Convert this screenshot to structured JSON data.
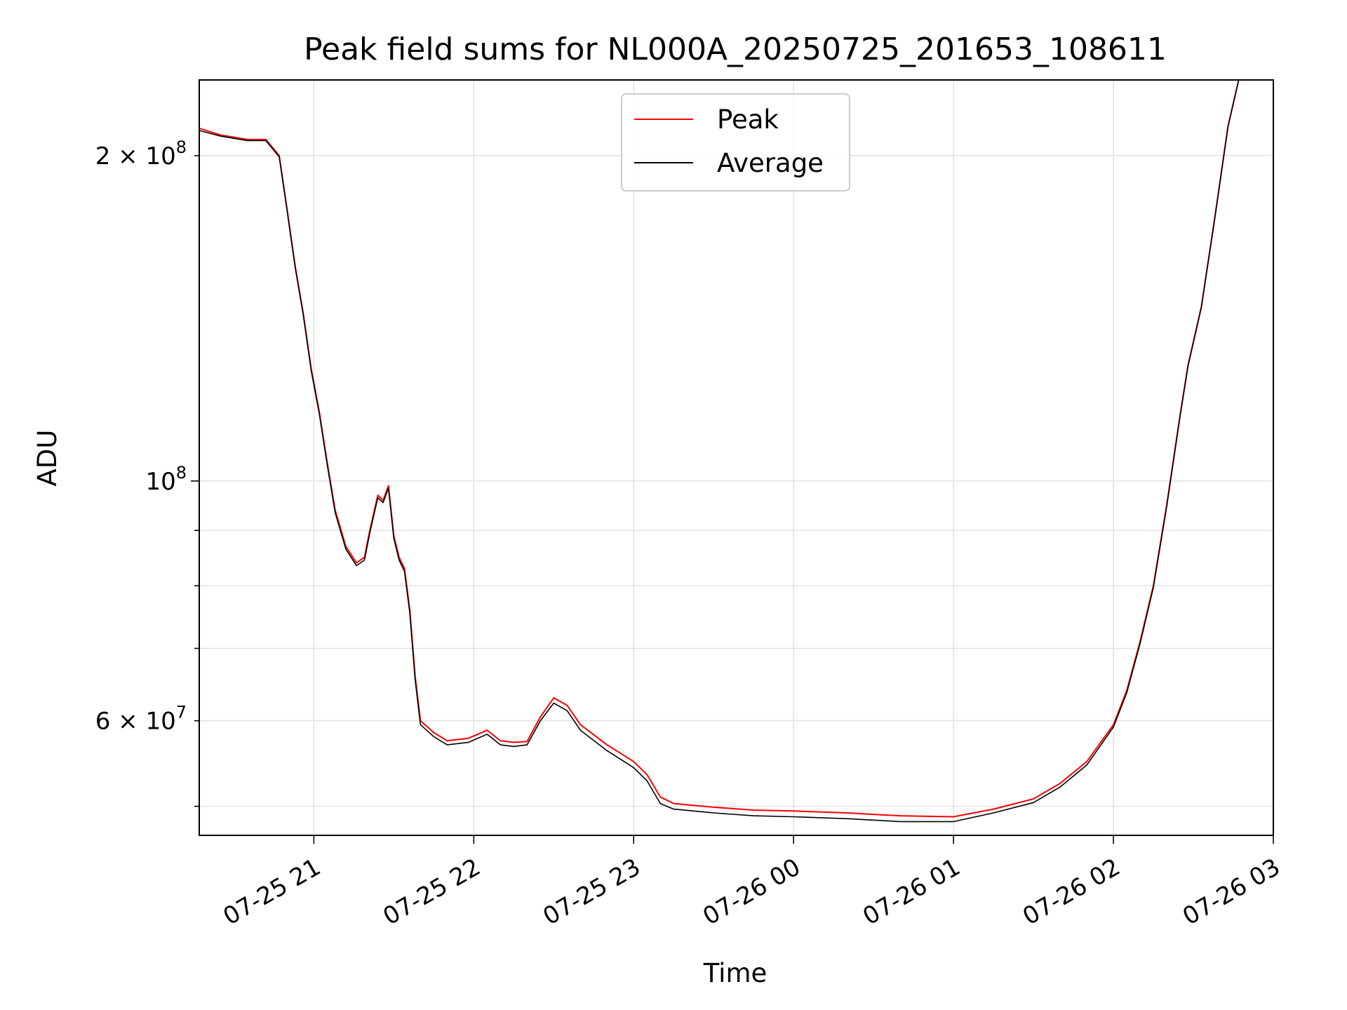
{
  "chart_data": {
    "type": "line",
    "title": "Peak field sums for NL000A_20250725_201653_108611",
    "xlabel": "Time",
    "ylabel": "ADU",
    "yscale": "log",
    "grid": true,
    "legend_position": "top-center",
    "xlim": [
      "2025-07-25 20:17",
      "2025-07-26 03:00"
    ],
    "ylim": [
      47000000,
      235000000
    ],
    "x_ticks": [
      {
        "value": "2025-07-25 21:00",
        "label": "07-25 21"
      },
      {
        "value": "2025-07-25 22:00",
        "label": "07-25 22"
      },
      {
        "value": "2025-07-25 23:00",
        "label": "07-25 23"
      },
      {
        "value": "2025-07-26 00:00",
        "label": "07-26 00"
      },
      {
        "value": "2025-07-26 01:00",
        "label": "07-26 01"
      },
      {
        "value": "2025-07-26 02:00",
        "label": "07-26 02"
      },
      {
        "value": "2025-07-26 03:00",
        "label": "07-26 03"
      }
    ],
    "y_major_ticks": [
      {
        "value": 100000000,
        "label_base": "10",
        "label_exp": "8"
      }
    ],
    "y_minor_ticks": [
      {
        "value": 200000000,
        "label_base": "2 × 10",
        "label_exp": "8"
      },
      {
        "value": 60000000,
        "label_base": "6 × 10",
        "label_exp": "7"
      },
      {
        "value": 50000000
      },
      {
        "value": 70000000
      },
      {
        "value": 80000000
      },
      {
        "value": 90000000
      }
    ],
    "series": [
      {
        "name": "Peak",
        "color": "#ff0000",
        "points": [
          [
            "2025-07-25 20:17",
            212000000
          ],
          [
            "2025-07-25 20:25",
            209000000
          ],
          [
            "2025-07-25 20:35",
            207000000
          ],
          [
            "2025-07-25 20:42",
            207000000
          ],
          [
            "2025-07-25 20:47",
            200000000
          ],
          [
            "2025-07-25 20:50",
            178000000
          ],
          [
            "2025-07-25 20:53",
            158000000
          ],
          [
            "2025-07-25 20:56",
            143000000
          ],
          [
            "2025-07-25 20:59",
            127000000
          ],
          [
            "2025-07-25 21:02",
            116000000
          ],
          [
            "2025-07-25 21:05",
            104000000
          ],
          [
            "2025-07-25 21:08",
            94000000
          ],
          [
            "2025-07-25 21:12",
            87000000
          ],
          [
            "2025-07-25 21:16",
            84000000
          ],
          [
            "2025-07-25 21:19",
            85000000
          ],
          [
            "2025-07-25 21:21",
            90000000
          ],
          [
            "2025-07-25 21:24",
            97000000
          ],
          [
            "2025-07-25 21:26",
            96000000
          ],
          [
            "2025-07-25 21:28",
            99000000
          ],
          [
            "2025-07-25 21:30",
            89000000
          ],
          [
            "2025-07-25 21:32",
            85000000
          ],
          [
            "2025-07-25 21:34",
            83000000
          ],
          [
            "2025-07-25 21:36",
            76000000
          ],
          [
            "2025-07-25 21:38",
            66000000
          ],
          [
            "2025-07-25 21:40",
            60000000
          ],
          [
            "2025-07-25 21:45",
            58500000
          ],
          [
            "2025-07-25 21:50",
            57500000
          ],
          [
            "2025-07-25 21:58",
            57800000
          ],
          [
            "2025-07-25 22:05",
            58800000
          ],
          [
            "2025-07-25 22:10",
            57500000
          ],
          [
            "2025-07-25 22:15",
            57300000
          ],
          [
            "2025-07-25 22:20",
            57400000
          ],
          [
            "2025-07-25 22:25",
            60500000
          ],
          [
            "2025-07-25 22:30",
            63000000
          ],
          [
            "2025-07-25 22:35",
            62000000
          ],
          [
            "2025-07-25 22:40",
            59500000
          ],
          [
            "2025-07-25 22:50",
            57000000
          ],
          [
            "2025-07-25 23:00",
            55000000
          ],
          [
            "2025-07-25 23:05",
            53500000
          ],
          [
            "2025-07-25 23:10",
            51000000
          ],
          [
            "2025-07-25 23:15",
            50300000
          ],
          [
            "2025-07-25 23:30",
            49900000
          ],
          [
            "2025-07-25 23:45",
            49600000
          ],
          [
            "2025-07-26 00:00",
            49500000
          ],
          [
            "2025-07-26 00:20",
            49300000
          ],
          [
            "2025-07-26 00:40",
            49000000
          ],
          [
            "2025-07-26 01:00",
            48900000
          ],
          [
            "2025-07-26 01:15",
            49700000
          ],
          [
            "2025-07-26 01:30",
            50800000
          ],
          [
            "2025-07-26 01:40",
            52500000
          ],
          [
            "2025-07-26 01:50",
            55000000
          ],
          [
            "2025-07-26 02:00",
            59500000
          ],
          [
            "2025-07-26 02:05",
            64000000
          ],
          [
            "2025-07-26 02:10",
            71000000
          ],
          [
            "2025-07-26 02:15",
            80000000
          ],
          [
            "2025-07-26 02:20",
            95000000
          ],
          [
            "2025-07-26 02:25",
            115000000
          ],
          [
            "2025-07-26 02:28",
            128000000
          ],
          [
            "2025-07-26 02:33",
            145000000
          ],
          [
            "2025-07-26 02:38",
            175000000
          ],
          [
            "2025-07-26 02:43",
            213000000
          ],
          [
            "2025-07-26 02:47",
            235000000
          ]
        ]
      },
      {
        "name": "Average",
        "color": "#000000",
        "points": [
          [
            "2025-07-25 20:17",
            211000000
          ],
          [
            "2025-07-25 20:25",
            208500000
          ],
          [
            "2025-07-25 20:35",
            206500000
          ],
          [
            "2025-07-25 20:42",
            206500000
          ],
          [
            "2025-07-25 20:47",
            199500000
          ],
          [
            "2025-07-25 20:50",
            177500000
          ],
          [
            "2025-07-25 20:53",
            157500000
          ],
          [
            "2025-07-25 20:56",
            142500000
          ],
          [
            "2025-07-25 20:59",
            126500000
          ],
          [
            "2025-07-25 21:02",
            115500000
          ],
          [
            "2025-07-25 21:05",
            103500000
          ],
          [
            "2025-07-25 21:08",
            93500000
          ],
          [
            "2025-07-25 21:12",
            86500000
          ],
          [
            "2025-07-25 21:16",
            83500000
          ],
          [
            "2025-07-25 21:19",
            84500000
          ],
          [
            "2025-07-25 21:21",
            89500000
          ],
          [
            "2025-07-25 21:24",
            96500000
          ],
          [
            "2025-07-25 21:26",
            95500000
          ],
          [
            "2025-07-25 21:28",
            98500000
          ],
          [
            "2025-07-25 21:30",
            88500000
          ],
          [
            "2025-07-25 21:32",
            84500000
          ],
          [
            "2025-07-25 21:34",
            82500000
          ],
          [
            "2025-07-25 21:36",
            75500000
          ],
          [
            "2025-07-25 21:38",
            65500000
          ],
          [
            "2025-07-25 21:40",
            59500000
          ],
          [
            "2025-07-25 21:45",
            58000000
          ],
          [
            "2025-07-25 21:50",
            57000000
          ],
          [
            "2025-07-25 21:58",
            57300000
          ],
          [
            "2025-07-25 22:05",
            58300000
          ],
          [
            "2025-07-25 22:10",
            57000000
          ],
          [
            "2025-07-25 22:15",
            56800000
          ],
          [
            "2025-07-25 22:20",
            57000000
          ],
          [
            "2025-07-25 22:25",
            60000000
          ],
          [
            "2025-07-25 22:30",
            62300000
          ],
          [
            "2025-07-25 22:35",
            61300000
          ],
          [
            "2025-07-25 22:40",
            58800000
          ],
          [
            "2025-07-25 22:50",
            56300000
          ],
          [
            "2025-07-25 23:00",
            54300000
          ],
          [
            "2025-07-25 23:05",
            52800000
          ],
          [
            "2025-07-25 23:10",
            50300000
          ],
          [
            "2025-07-25 23:15",
            49700000
          ],
          [
            "2025-07-25 23:30",
            49300000
          ],
          [
            "2025-07-25 23:45",
            49000000
          ],
          [
            "2025-07-26 00:00",
            48900000
          ],
          [
            "2025-07-26 00:20",
            48700000
          ],
          [
            "2025-07-26 00:40",
            48400000
          ],
          [
            "2025-07-26 01:00",
            48400000
          ],
          [
            "2025-07-26 01:15",
            49300000
          ],
          [
            "2025-07-26 01:30",
            50400000
          ],
          [
            "2025-07-26 01:40",
            52100000
          ],
          [
            "2025-07-26 01:50",
            54600000
          ],
          [
            "2025-07-26 02:00",
            59200000
          ],
          [
            "2025-07-26 02:05",
            63700000
          ],
          [
            "2025-07-26 02:10",
            70700000
          ],
          [
            "2025-07-26 02:15",
            79700000
          ],
          [
            "2025-07-26 02:20",
            94700000
          ],
          [
            "2025-07-26 02:25",
            114700000
          ],
          [
            "2025-07-26 02:28",
            127700000
          ],
          [
            "2025-07-26 02:33",
            144700000
          ],
          [
            "2025-07-26 02:38",
            174700000
          ],
          [
            "2025-07-26 02:43",
            212700000
          ],
          [
            "2025-07-26 02:47",
            235000000
          ]
        ]
      }
    ]
  }
}
